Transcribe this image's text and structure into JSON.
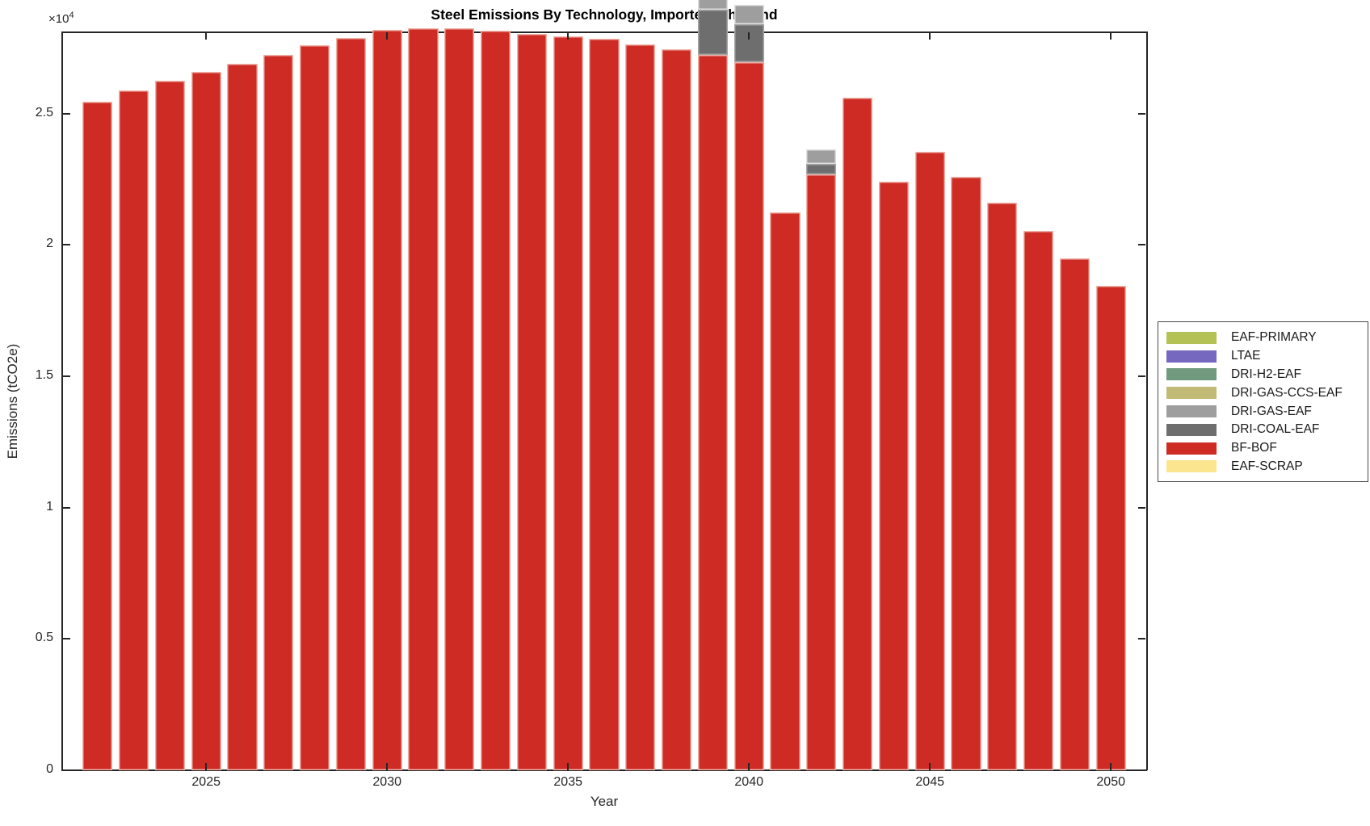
{
  "figure": {
    "title": "Steel Emissions By Technology, Imported: Thailand",
    "xlabel": "Year",
    "ylabel": "Emissions (tCO2e)",
    "y_axis_offset": {
      "base": "×10",
      "exponent": "4"
    }
  },
  "chart_data": {
    "type": "bar",
    "stacked": true,
    "title": "Steel Emissions By Technology, Imported: Thailand",
    "xlabel": "Year",
    "ylabel": "Emissions (tCO2e)",
    "grid": false,
    "legend_position": "right-outside",
    "xlim": [
      2021,
      2051
    ],
    "ylim": [
      0,
      28100
    ],
    "xticks": [
      2025,
      2030,
      2035,
      2040,
      2045,
      2050
    ],
    "yticks": [
      {
        "value": 0,
        "label": "0"
      },
      {
        "value": 5000,
        "label": "0.5"
      },
      {
        "value": 10000,
        "label": "1"
      },
      {
        "value": 15000,
        "label": "1.5"
      },
      {
        "value": 20000,
        "label": "2"
      },
      {
        "value": 25000,
        "label": "2.5"
      }
    ],
    "bar_width_fraction": 0.83,
    "x": [
      2022,
      2023,
      2024,
      2025,
      2026,
      2027,
      2028,
      2029,
      2030,
      2031,
      2032,
      2033,
      2034,
      2035,
      2036,
      2037,
      2038,
      2039,
      2040,
      2041,
      2042,
      2043,
      2044,
      2045,
      2046,
      2047,
      2048,
      2049,
      2050
    ],
    "stack_order_bottom_to_top": [
      "BF-BOF",
      "DRI-COAL-EAF",
      "DRI-GAS-EAF",
      "DRI-GAS-CCS-EAF",
      "DRI-H2-EAF",
      "LTAE",
      "EAF-PRIMARY",
      "EAF-SCRAP"
    ],
    "series": [
      {
        "name": "EAF-PRIMARY",
        "color": "#b4c155",
        "edge": "#d3dc93",
        "values": [
          0,
          0,
          0,
          0,
          0,
          0,
          0,
          0,
          0,
          0,
          0,
          0,
          0,
          0,
          0,
          0,
          0,
          0,
          0,
          0,
          0,
          0,
          0,
          0,
          0,
          0,
          0,
          0,
          0
        ]
      },
      {
        "name": "LTAE",
        "color": "#7667bf",
        "edge": "#a99fd8",
        "values": [
          0,
          0,
          0,
          0,
          0,
          0,
          0,
          0,
          0,
          0,
          0,
          0,
          0,
          0,
          0,
          0,
          0,
          0,
          0,
          0,
          0,
          0,
          0,
          0,
          0,
          0,
          0,
          0,
          0
        ]
      },
      {
        "name": "DRI-H2-EAF",
        "color": "#71997d",
        "edge": "#a6c2ae",
        "values": [
          0,
          0,
          0,
          0,
          0,
          0,
          0,
          0,
          0,
          0,
          0,
          0,
          0,
          0,
          0,
          0,
          0,
          0,
          0,
          0,
          0,
          0,
          0,
          0,
          0,
          0,
          0,
          0,
          0
        ]
      },
      {
        "name": "DRI-GAS-CCS-EAF",
        "color": "#c1ba76",
        "edge": "#dcd7a8",
        "values": [
          0,
          0,
          0,
          0,
          0,
          0,
          0,
          0,
          0,
          0,
          0,
          0,
          0,
          0,
          0,
          0,
          0,
          0,
          0,
          0,
          0,
          0,
          0,
          0,
          0,
          0,
          0,
          0,
          0
        ]
      },
      {
        "name": "DRI-GAS-EAF",
        "color": "#9e9e9e",
        "edge": "#dedede",
        "values": [
          0,
          0,
          0,
          0,
          0,
          0,
          0,
          0,
          0,
          0,
          0,
          0,
          0,
          0,
          0,
          0,
          0,
          1200,
          750,
          0,
          550,
          0,
          0,
          0,
          0,
          0,
          0,
          0,
          0
        ]
      },
      {
        "name": "DRI-COAL-EAF",
        "color": "#6e6e6e",
        "edge": "#a5a5a5",
        "values": [
          0,
          0,
          0,
          0,
          0,
          0,
          0,
          0,
          0,
          0,
          0,
          0,
          0,
          0,
          0,
          0,
          0,
          1700,
          1450,
          0,
          400,
          0,
          0,
          0,
          0,
          0,
          0,
          0,
          0
        ]
      },
      {
        "name": "BF-BOF",
        "color": "#cd2b24",
        "edge": "#efb2a8",
        "values": [
          25450,
          25900,
          26250,
          26600,
          26900,
          27250,
          27600,
          27900,
          28200,
          28250,
          28250,
          28150,
          28050,
          27950,
          27850,
          27650,
          27450,
          27250,
          26950,
          21250,
          22700,
          25600,
          22400,
          23550,
          22600,
          21600,
          20550,
          19500,
          18450
        ]
      },
      {
        "name": "EAF-SCRAP",
        "color": "#fbe68f",
        "edge": "#fdf3c7",
        "values": [
          0,
          0,
          0,
          0,
          0,
          0,
          0,
          0,
          0,
          0,
          0,
          0,
          0,
          0,
          0,
          0,
          0,
          0,
          0,
          0,
          0,
          0,
          0,
          0,
          0,
          0,
          0,
          0,
          0
        ]
      }
    ]
  }
}
